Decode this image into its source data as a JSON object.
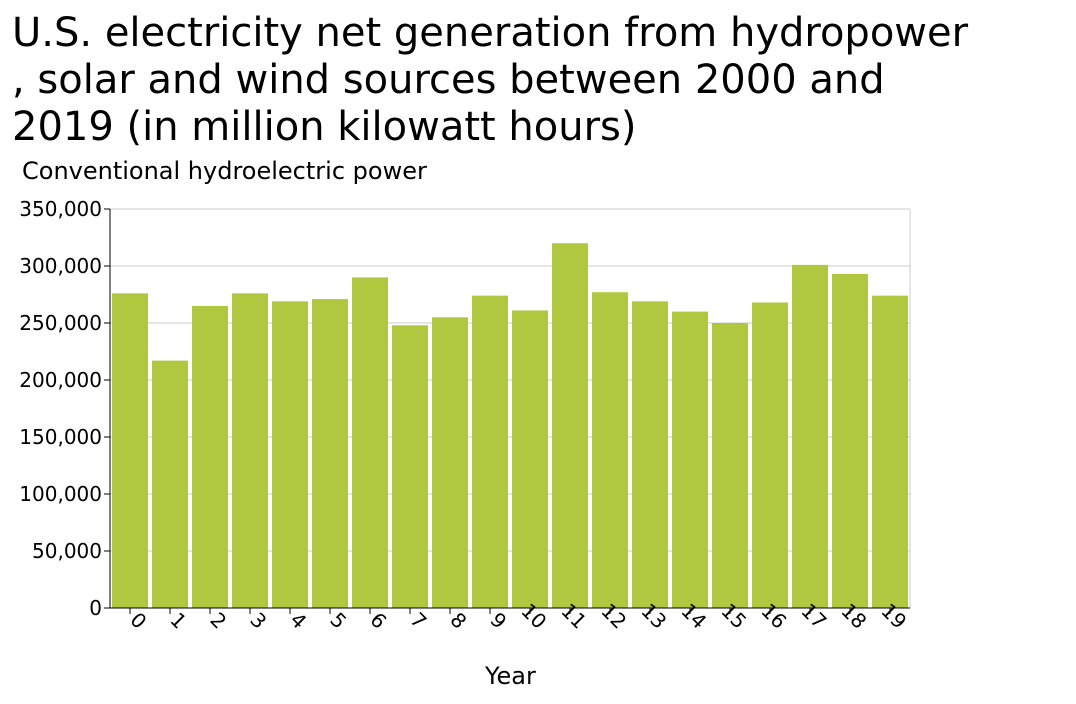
{
  "title_lines": [
    "U.S. electricity net generation from hydropower",
    ", solar and wind sources between 2000 and",
    "2019 (in million kilowatt hours)"
  ],
  "chart_data": {
    "type": "bar",
    "title": "U.S. electricity net generation from hydropower , solar and wind sources between 2000 and 2019 (in million kilowatt hours)",
    "xlabel": "Year",
    "ylabel": "Conventional hydroelectric power",
    "categories": [
      "0",
      "1",
      "2",
      "3",
      "4",
      "5",
      "6",
      "7",
      "8",
      "9",
      "10",
      "11",
      "12",
      "13",
      "14",
      "15",
      "16",
      "17",
      "18",
      "19"
    ],
    "values": [
      276000,
      217000,
      265000,
      276000,
      269000,
      271000,
      290000,
      248000,
      255000,
      274000,
      261000,
      320000,
      277000,
      269000,
      260000,
      250000,
      268000,
      301000,
      293000,
      274000
    ],
    "ylim": [
      0,
      350000
    ],
    "yticks": [
      0,
      50000,
      100000,
      150000,
      200000,
      250000,
      300000,
      350000
    ],
    "ytick_labels": [
      "0",
      "50,000",
      "100,000",
      "150,000",
      "200,000",
      "250,000",
      "300,000",
      "350,000"
    ],
    "grid": "horizontal",
    "bar_color": "#b0c840",
    "grid_color": "#cccccc",
    "axis_color": "#000000"
  }
}
